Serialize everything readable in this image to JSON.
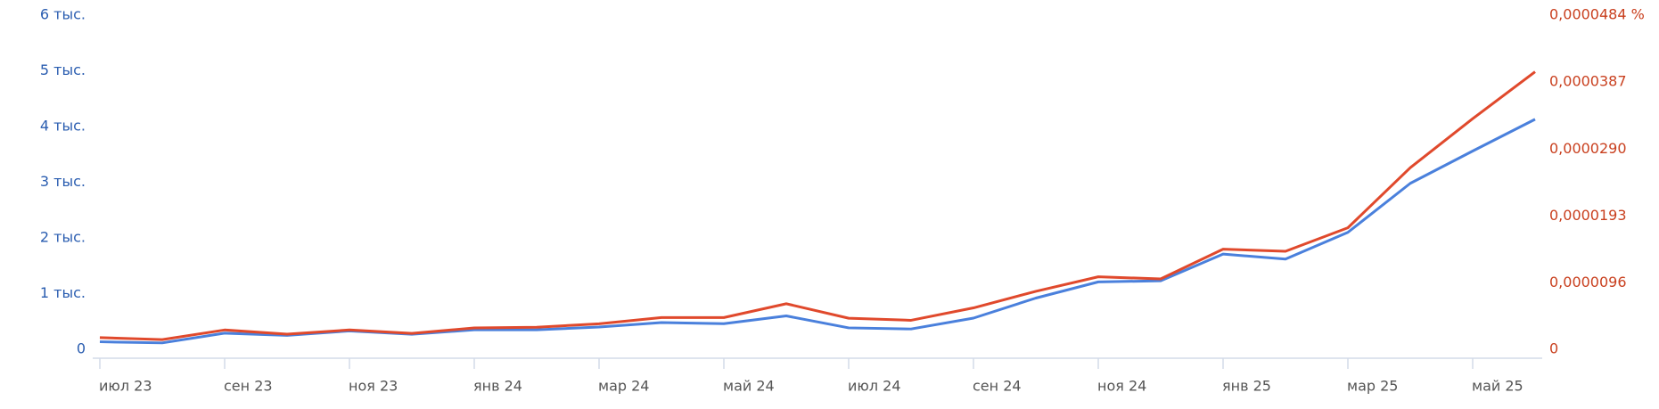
{
  "chart_data": {
    "type": "line",
    "categories": [
      "июл 23",
      null,
      "сен 23",
      null,
      "ноя 23",
      null,
      "янв 24",
      null,
      "мар 24",
      null,
      "май 24",
      null,
      "июл 24",
      null,
      "сен 24",
      null,
      "ноя 24",
      null,
      "янв 25",
      null,
      "мар 25",
      null,
      "май 25",
      null
    ],
    "series": [
      {
        "color": "#4a80dc",
        "values": [
          135,
          115,
          290,
          250,
          330,
          270,
          350,
          350,
          400,
          480,
          460,
          600,
          385,
          365,
          560,
          920,
          1210,
          1230,
          1710,
          1620,
          2100,
          2980,
          3560,
          4130
        ]
      },
      {
        "color": "#e0492c",
        "axis": "y2",
        "values": [
          1.7e-06,
          1.4e-06,
          2.8e-06,
          2.2e-06,
          2.8e-06,
          2.3e-06,
          3.1e-06,
          3.2e-06,
          3.7e-06,
          4.6e-06,
          4.6e-06,
          6.6e-06,
          4.5e-06,
          4.2e-06,
          6e-06,
          8.4e-06,
          1.05e-05,
          1.02e-05,
          1.45e-05,
          1.42e-05,
          1.76e-05,
          2.63e-05,
          3.34e-05,
          4.02e-05
        ]
      }
    ],
    "ylim": [
      0,
      6000
    ],
    "yticks": [
      0,
      {
        "value": 1000,
        "label": "1 тыс."
      },
      {
        "value": 2000,
        "label": "2 тыс."
      },
      {
        "value": 3000,
        "label": "3 тыс."
      },
      {
        "value": 4000,
        "label": "4 тыс."
      },
      {
        "value": 5000,
        "label": "5 тыс."
      },
      {
        "value": 6000,
        "label": "6 тыс."
      }
    ],
    "y2lim": [
      0,
      4.84e-05
    ],
    "y2ticks": [
      0,
      {
        "value": 9.6e-06,
        "label": "0,0000096"
      },
      {
        "value": 1.93e-05,
        "label": "0,0000193"
      },
      {
        "value": 2.9e-05,
        "label": "0,0000290"
      },
      {
        "value": 3.87e-05,
        "label": "0,0000387"
      },
      {
        "value": 4.84e-05,
        "label": "0,0000484 %"
      }
    ],
    "ytick_color": "#2a5db0",
    "y2tick_color": "#c9401f"
  }
}
